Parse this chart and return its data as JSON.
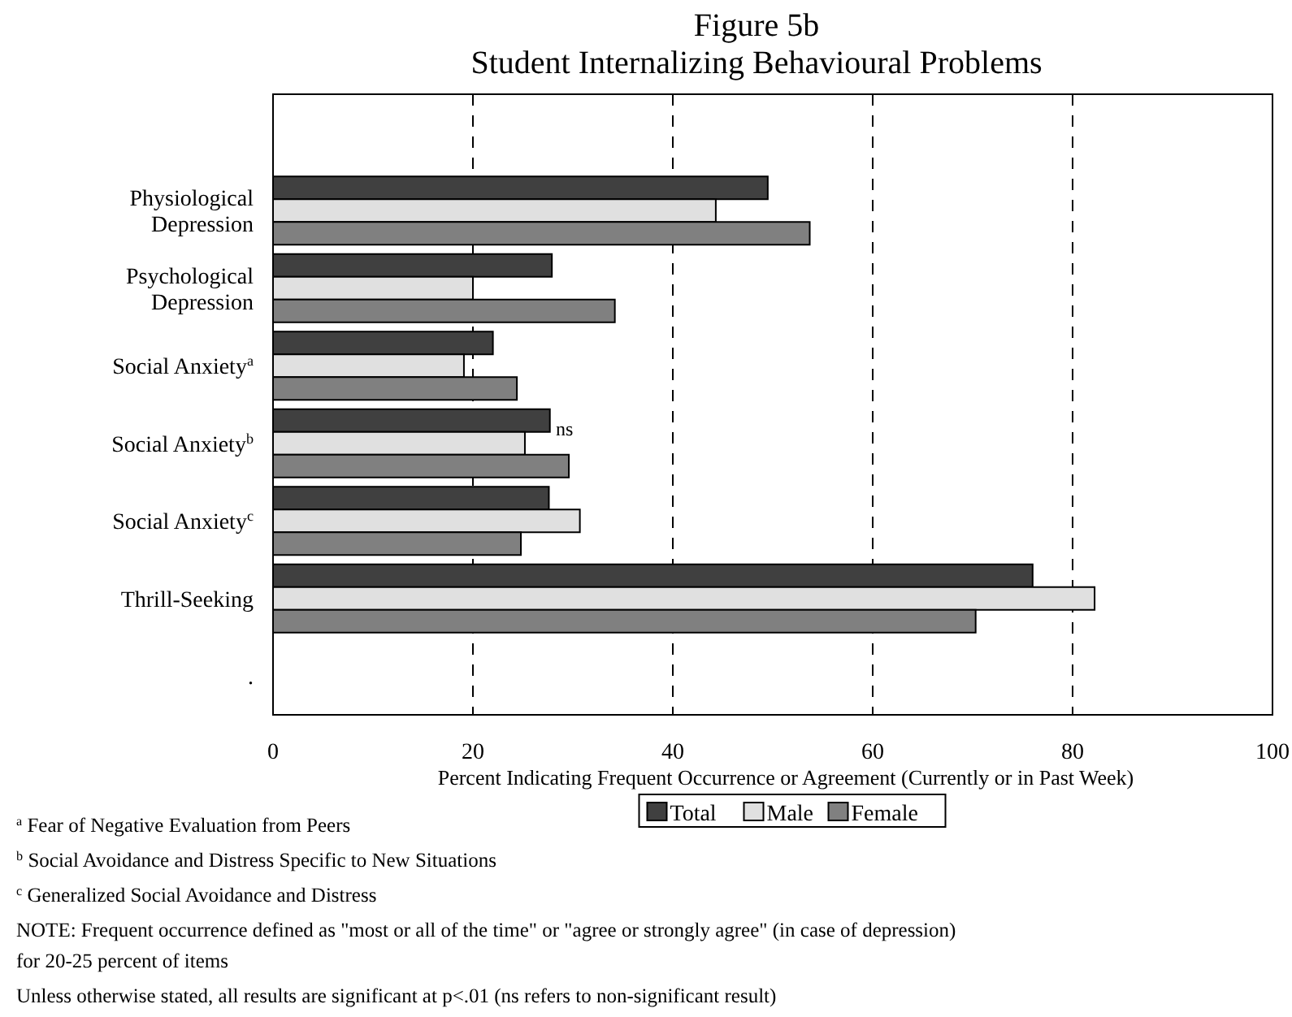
{
  "chart_data": {
    "type": "bar",
    "orientation": "horizontal",
    "title": "Figure 5b",
    "subtitle": "Student Internalizing Behavioural Problems",
    "xlabel": "Percent Indicating Frequent Occurrence or Agreement  (Currently or in Past Week)",
    "categories": [
      null,
      "Physiological\nDepression",
      "Psychological\nDepression",
      "Social Anxiety$^{a}$",
      "Social Anxiety$^{b}$",
      "Social Anxiety$^{c}$",
      "Thrill-Seeking",
      "."
    ],
    "series": [
      {
        "name": "Total",
        "color": "#404040",
        "values": [
          null,
          49.5,
          27.9,
          22.0,
          27.7,
          27.6,
          76.0,
          null
        ]
      },
      {
        "name": "Male",
        "color": "#e0e0e0",
        "values": [
          null,
          44.3,
          20.0,
          19.1,
          25.2,
          30.7,
          82.2,
          null
        ]
      },
      {
        "name": "Female",
        "color": "#808080",
        "values": [
          null,
          53.7,
          34.2,
          24.4,
          29.6,
          24.8,
          70.3,
          null
        ]
      }
    ],
    "xlim": [
      0,
      100
    ],
    "xticks": [
      0,
      20,
      40,
      60,
      80,
      100
    ],
    "grid": "x",
    "legend": "bottom",
    "annotations": [
      "ns",
      "$^{a}$ Fear of Negative Evaluation from Peers",
      "$^{b}$ Social Avoidance and  Distress Specific to New Situations",
      "$^{c}$ Generalized Social Avoidance and Distress",
      "NOTE:  Frequent occurrence defined as \"most or all of the time\" or \"agree or strongly agree\" (in case of depression)\nfor 20-25 percent of items",
      "Unless otherwise stated, all results are significant at p<.01 (ns refers to non-significant result)"
    ]
  }
}
